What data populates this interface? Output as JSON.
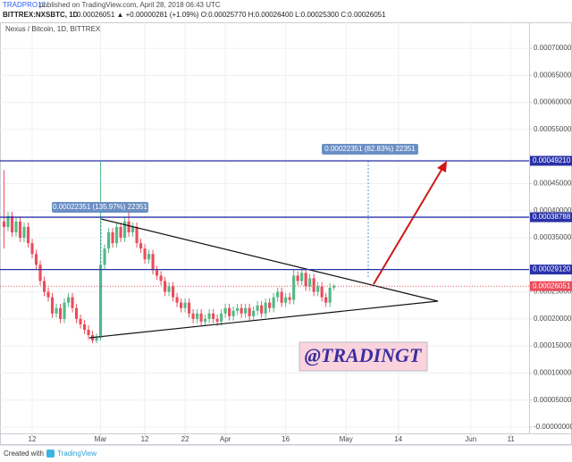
{
  "header": {
    "author": "TRADPRO12",
    "published": "published on TradingView.com, April 28, 2018 06:43 UTC",
    "symbol": "BITTREX:NXSBTC, 1D",
    "quote": "0.00026051 ▲ +0.00000281 (+1.09%) O:0.00025770 H:0.00026400 L:0.00025300 C:0.00026051"
  },
  "footer": {
    "prefix": "Created with",
    "brand": "TradingView"
  },
  "chart_data": {
    "type": "candlestick",
    "title": "Nexus / Bitcoin, 1D, BITTREX",
    "x": [
      36,
      37,
      38,
      39,
      40,
      41,
      42,
      43,
      44,
      45,
      46,
      47,
      48,
      49,
      50,
      51,
      52,
      53,
      54,
      55,
      56,
      57,
      58,
      59,
      60,
      61,
      62,
      63,
      64,
      65,
      66,
      67,
      68,
      69,
      70,
      71,
      72,
      73,
      74,
      75,
      76,
      77,
      78,
      79,
      80,
      81,
      82,
      83,
      84,
      85,
      86,
      87,
      88,
      89,
      90,
      91,
      92,
      93,
      94,
      95,
      96,
      97,
      98,
      99,
      100,
      101,
      102,
      103,
      104,
      105,
      106,
      107,
      108,
      109,
      110,
      111,
      112,
      113,
      114,
      115,
      116,
      117,
      118
    ],
    "open": [
      0.00038,
      0.00037,
      0.00039,
      0.00036,
      0.00038,
      0.00035,
      0.00037,
      0.00034,
      0.00032,
      0.0003,
      0.00027,
      0.00025,
      0.00024,
      0.00021,
      0.00022,
      0.0002,
      0.00023,
      0.00024,
      0.00022,
      0.0002,
      0.00019,
      0.00018,
      0.00017,
      0.00016,
      0.000165,
      0.0003,
      0.00033,
      0.00036,
      0.00034,
      0.00037,
      0.00035,
      0.00038,
      0.00036,
      0.00037,
      0.00034,
      0.00033,
      0.00031,
      0.00032,
      0.00029,
      0.00028,
      0.00027,
      0.00025,
      0.00026,
      0.00024,
      0.00023,
      0.00022,
      0.00023,
      0.00021,
      0.0002,
      0.00021,
      0.000195,
      0.0002,
      0.00021,
      0.0002,
      0.000195,
      0.00021,
      0.00022,
      0.000205,
      0.000215,
      0.00022,
      0.00021,
      0.00022,
      0.000205,
      0.000215,
      0.000225,
      0.00021,
      0.00023,
      0.00022,
      0.00024,
      0.00025,
      0.00023,
      0.00024,
      0.000235,
      0.00028,
      0.00027,
      0.000285,
      0.00026,
      0.000275,
      0.00025,
      0.00026,
      0.00024,
      0.00023,
      0.0002577
    ],
    "high": [
      0.000475,
      0.000398,
      0.000398,
      0.000388,
      0.000388,
      0.000378,
      0.000378,
      0.000348,
      0.000328,
      0.000308,
      0.000278,
      0.000258,
      0.000248,
      0.000228,
      0.000228,
      0.000238,
      0.000248,
      0.000248,
      0.000228,
      0.000208,
      0.000198,
      0.000188,
      0.000178,
      0.000173,
      0.00049,
      0.000338,
      0.000368,
      0.000368,
      0.000378,
      0.000378,
      0.000388,
      0.0004,
      0.000378,
      0.000378,
      0.000348,
      0.000338,
      0.000328,
      0.000328,
      0.000298,
      0.000288,
      0.000278,
      0.000268,
      0.000268,
      0.000248,
      0.000238,
      0.000238,
      0.000238,
      0.000218,
      0.000218,
      0.000218,
      0.000208,
      0.000218,
      0.000218,
      0.000208,
      0.000218,
      0.000228,
      0.000228,
      0.000223,
      0.000228,
      0.000228,
      0.000228,
      0.000228,
      0.000223,
      0.000233,
      0.000233,
      0.000238,
      0.000238,
      0.000248,
      0.000258,
      0.000258,
      0.000248,
      0.000248,
      0.000291,
      0.000288,
      0.000291,
      0.000291,
      0.000283,
      0.000283,
      0.000268,
      0.000268,
      0.000248,
      0.000266,
      0.000264
    ],
    "low": [
      0.00033,
      0.000362,
      0.000352,
      0.000352,
      0.000342,
      0.000342,
      0.000332,
      0.000312,
      0.000292,
      0.000262,
      0.000242,
      0.000232,
      0.000202,
      0.000202,
      0.000192,
      0.000192,
      0.000222,
      0.000212,
      0.000192,
      0.000182,
      0.000172,
      0.000162,
      0.000155,
      0.000155,
      0.00016,
      0.000292,
      0.000322,
      0.000332,
      0.000332,
      0.000342,
      0.000342,
      0.000352,
      0.000352,
      0.000332,
      0.000322,
      0.000302,
      0.000302,
      0.000282,
      0.000272,
      0.000262,
      0.000242,
      0.000242,
      0.000232,
      0.000222,
      0.000212,
      0.000212,
      0.000202,
      0.000192,
      0.000192,
      0.000187,
      0.000187,
      0.000192,
      0.000192,
      0.000187,
      0.000187,
      0.000202,
      0.000197,
      0.000197,
      0.000207,
      0.000202,
      0.000202,
      0.000197,
      0.000197,
      0.000207,
      0.000202,
      0.000202,
      0.000212,
      0.000212,
      0.000232,
      0.000222,
      0.000222,
      0.000227,
      0.000227,
      0.000262,
      0.000262,
      0.000252,
      0.000252,
      0.000242,
      0.000242,
      0.000232,
      0.000222,
      0.000222,
      0.000253
    ],
    "close": [
      0.00037,
      0.00039,
      0.00036,
      0.00038,
      0.00035,
      0.00037,
      0.00034,
      0.00032,
      0.0003,
      0.00027,
      0.00025,
      0.00024,
      0.00021,
      0.00022,
      0.0002,
      0.00023,
      0.00024,
      0.00022,
      0.0002,
      0.00019,
      0.00018,
      0.00017,
      0.00016,
      0.000165,
      0.0003,
      0.00033,
      0.00036,
      0.00034,
      0.00037,
      0.00035,
      0.00038,
      0.00036,
      0.00037,
      0.00034,
      0.00033,
      0.00031,
      0.00032,
      0.00029,
      0.00028,
      0.00027,
      0.00025,
      0.00026,
      0.00024,
      0.00023,
      0.00022,
      0.00023,
      0.00021,
      0.0002,
      0.00021,
      0.000195,
      0.0002,
      0.00021,
      0.0002,
      0.000195,
      0.00021,
      0.00022,
      0.000205,
      0.000215,
      0.00022,
      0.00021,
      0.00022,
      0.000205,
      0.000215,
      0.000225,
      0.00021,
      0.00023,
      0.00022,
      0.00024,
      0.00025,
      0.00023,
      0.00024,
      0.000235,
      0.00028,
      0.00027,
      0.000285,
      0.00026,
      0.000275,
      0.00025,
      0.00026,
      0.00024,
      0.00023,
      0.0002577,
      0.00026051
    ],
    "up_color": "#53b987",
    "down_color": "#eb4d5c",
    "xlim": [
      35,
      166.5
    ],
    "xticks": [
      {
        "value": 43,
        "label": "12"
      },
      {
        "value": 60,
        "label": "Mar"
      },
      {
        "value": 71,
        "label": "12"
      },
      {
        "value": 81,
        "label": "22"
      },
      {
        "value": 91,
        "label": "Apr"
      },
      {
        "value": 106,
        "label": "16"
      },
      {
        "value": 121,
        "label": "May"
      },
      {
        "value": 134,
        "label": "14"
      },
      {
        "value": 152,
        "label": "Jun"
      },
      {
        "value": 162,
        "label": "11"
      }
    ],
    "ylim": [
      -1.16e-05,
      0.000748
    ],
    "yticks": [
      {
        "value": 0.0007,
        "label": "0.00070000"
      },
      {
        "value": 0.00065,
        "label": "0.00065000"
      },
      {
        "value": 0.0006,
        "label": "0.00060000"
      },
      {
        "value": 0.00055,
        "label": "0.00055000"
      },
      {
        "value": 0.00045,
        "label": "0.00045000"
      },
      {
        "value": 0.0004,
        "label": "0.00040000"
      },
      {
        "value": 0.00035,
        "label": "0.00035000"
      },
      {
        "value": 0.00025,
        "label": "0.00025000"
      },
      {
        "value": 0.0002,
        "label": "0.00020000"
      },
      {
        "value": 0.00015,
        "label": "0.00015000"
      },
      {
        "value": 0.0001,
        "label": "0.00010000"
      },
      {
        "value": 5e-05,
        "label": "0.00005000"
      },
      {
        "value": 0,
        "label": "-0.00000000"
      }
    ],
    "grid": true,
    "price_lines": [
      {
        "value": 0.0004921,
        "label": "0.00049210",
        "color": "#2932a8",
        "style": "solid"
      },
      {
        "value": 0.00038788,
        "label": "0.00038788",
        "color": "#2932a8",
        "style": "solid"
      },
      {
        "value": 0.0002912,
        "label": "0.00029120",
        "color": "#2932a8",
        "style": "solid"
      },
      {
        "value": 0.00026051,
        "label": "0.00026051",
        "color": "#eb4d5c",
        "style": "dotted"
      }
    ],
    "annotations": [
      "0.00022351 (135.97%) 22351",
      "0.00022351 (82.83%) 22351",
      "@TRADINGT"
    ]
  }
}
